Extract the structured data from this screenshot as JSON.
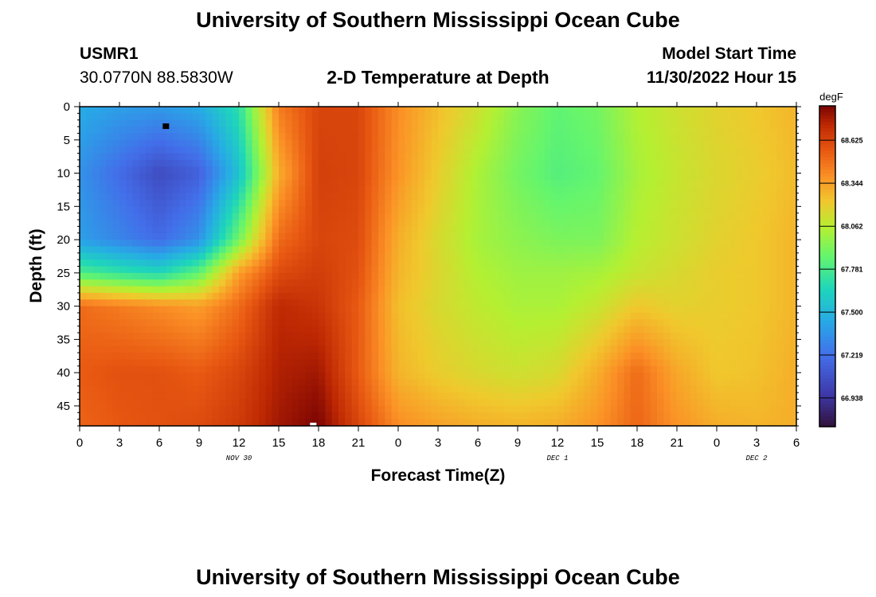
{
  "page": {
    "title_top": "University of Southern Mississippi Ocean Cube",
    "title_bottom": "University of Southern Mississippi Ocean Cube",
    "station_id": "USMR1",
    "station_coords": "30.0770N  88.5830W",
    "subtitle": "2-D Temperature at Depth",
    "model_start_label": "Model Start Time",
    "model_start_value": "11/30/2022 Hour 15"
  },
  "chart_data": {
    "type": "heatmap",
    "title": "2-D Temperature at Depth",
    "xlabel": "Forecast Time(Z)",
    "ylabel": "Depth (ft)",
    "colorbar_unit": "degF",
    "colorbar_ticks": [
      "68.625",
      "68.344",
      "68.062",
      "67.781",
      "67.500",
      "67.219",
      "66.938"
    ],
    "colorbar_range": [
      66.75,
      68.85
    ],
    "x_range_hours": [
      0,
      54
    ],
    "x_tick_labels": [
      "0",
      "3",
      "6",
      "9",
      "12",
      "15",
      "18",
      "21",
      "0",
      "3",
      "6",
      "9",
      "12",
      "15",
      "18",
      "21",
      "0",
      "3",
      "6"
    ],
    "date_labels": [
      {
        "text": "NOV 30",
        "hour": 12
      },
      {
        "text": "DEC 1",
        "hour": 36
      },
      {
        "text": "DEC 2",
        "hour": 51
      }
    ],
    "y_range_ft": [
      0,
      48
    ],
    "y_tick_labels": [
      "0",
      "5",
      "10",
      "15",
      "20",
      "25",
      "30",
      "35",
      "40",
      "45"
    ],
    "temperature_field_degF": {
      "depths_ft": [
        0,
        10,
        20,
        25,
        30,
        40,
        48
      ],
      "hours": [
        0,
        3,
        6,
        9,
        12,
        15,
        18,
        21,
        24,
        27,
        30,
        33,
        36,
        39,
        42,
        45,
        48,
        51,
        54
      ],
      "values": [
        [
          67.45,
          67.4,
          67.38,
          67.45,
          67.7,
          68.45,
          68.62,
          68.62,
          68.4,
          68.25,
          68.12,
          67.95,
          67.85,
          67.9,
          68.05,
          68.12,
          68.18,
          68.22,
          68.28
        ],
        [
          67.35,
          67.2,
          67.05,
          67.15,
          67.55,
          68.3,
          68.64,
          68.62,
          68.38,
          68.2,
          68.03,
          67.9,
          67.82,
          67.86,
          68.02,
          68.1,
          68.16,
          68.2,
          68.26
        ],
        [
          67.4,
          67.3,
          67.2,
          67.35,
          67.9,
          68.5,
          68.62,
          68.6,
          68.3,
          68.15,
          68.02,
          67.96,
          67.92,
          67.92,
          68.06,
          68.12,
          68.18,
          68.22,
          68.28
        ],
        [
          67.8,
          67.72,
          67.66,
          67.85,
          68.35,
          68.6,
          68.65,
          68.58,
          68.28,
          68.16,
          68.05,
          68.0,
          68.0,
          68.02,
          68.1,
          68.15,
          68.2,
          68.22,
          68.28
        ],
        [
          68.5,
          68.45,
          68.4,
          68.35,
          68.5,
          68.72,
          68.68,
          68.55,
          68.25,
          68.15,
          68.08,
          68.03,
          68.03,
          68.1,
          68.22,
          68.18,
          68.2,
          68.22,
          68.28
        ],
        [
          68.55,
          68.58,
          68.58,
          68.55,
          68.62,
          68.75,
          68.78,
          68.55,
          68.28,
          68.2,
          68.15,
          68.12,
          68.15,
          68.3,
          68.5,
          68.32,
          68.22,
          68.24,
          68.3
        ],
        [
          68.52,
          68.56,
          68.58,
          68.6,
          68.66,
          68.78,
          68.85,
          68.62,
          68.4,
          68.34,
          68.3,
          68.28,
          68.3,
          68.38,
          68.52,
          68.38,
          68.3,
          68.28,
          68.3
        ]
      ]
    },
    "markers": [
      {
        "name": "black-marker",
        "hour": 6.5,
        "depth_ft": 3,
        "color": "#000000"
      },
      {
        "name": "white-marker",
        "hour": 17.6,
        "depth_ft": 48,
        "color": "#ffffff"
      }
    ]
  }
}
